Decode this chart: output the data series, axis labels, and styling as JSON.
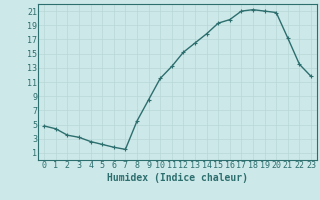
{
  "x": [
    0,
    1,
    2,
    3,
    4,
    5,
    6,
    7,
    8,
    9,
    10,
    11,
    12,
    13,
    14,
    15,
    16,
    17,
    18,
    19,
    20,
    21,
    22,
    23
  ],
  "y": [
    4.8,
    4.4,
    3.5,
    3.2,
    2.6,
    2.2,
    1.8,
    1.5,
    5.5,
    8.5,
    11.5,
    13.2,
    15.2,
    16.5,
    17.8,
    19.3,
    19.8,
    21.0,
    21.2,
    21.0,
    20.8,
    17.2,
    13.5,
    11.8
  ],
  "line_color": "#2d6e6e",
  "marker": "+",
  "marker_size": 3,
  "marker_linewidth": 0.8,
  "line_width": 1.0,
  "background_color": "#cce8e8",
  "grid_color": "#b8d8d8",
  "xlabel": "Humidex (Indice chaleur)",
  "xlabel_fontsize": 7,
  "xlabel_weight": "bold",
  "tick_fontsize": 6,
  "xlim": [
    -0.5,
    23.5
  ],
  "ylim": [
    0,
    22
  ],
  "yticks": [
    1,
    3,
    5,
    7,
    9,
    11,
    13,
    15,
    17,
    19,
    21
  ],
  "xticks": [
    0,
    1,
    2,
    3,
    4,
    5,
    6,
    7,
    8,
    9,
    10,
    11,
    12,
    13,
    14,
    15,
    16,
    17,
    18,
    19,
    20,
    21,
    22,
    23
  ],
  "spine_color": "#2d6e6e",
  "label_color": "#2d6e6e"
}
